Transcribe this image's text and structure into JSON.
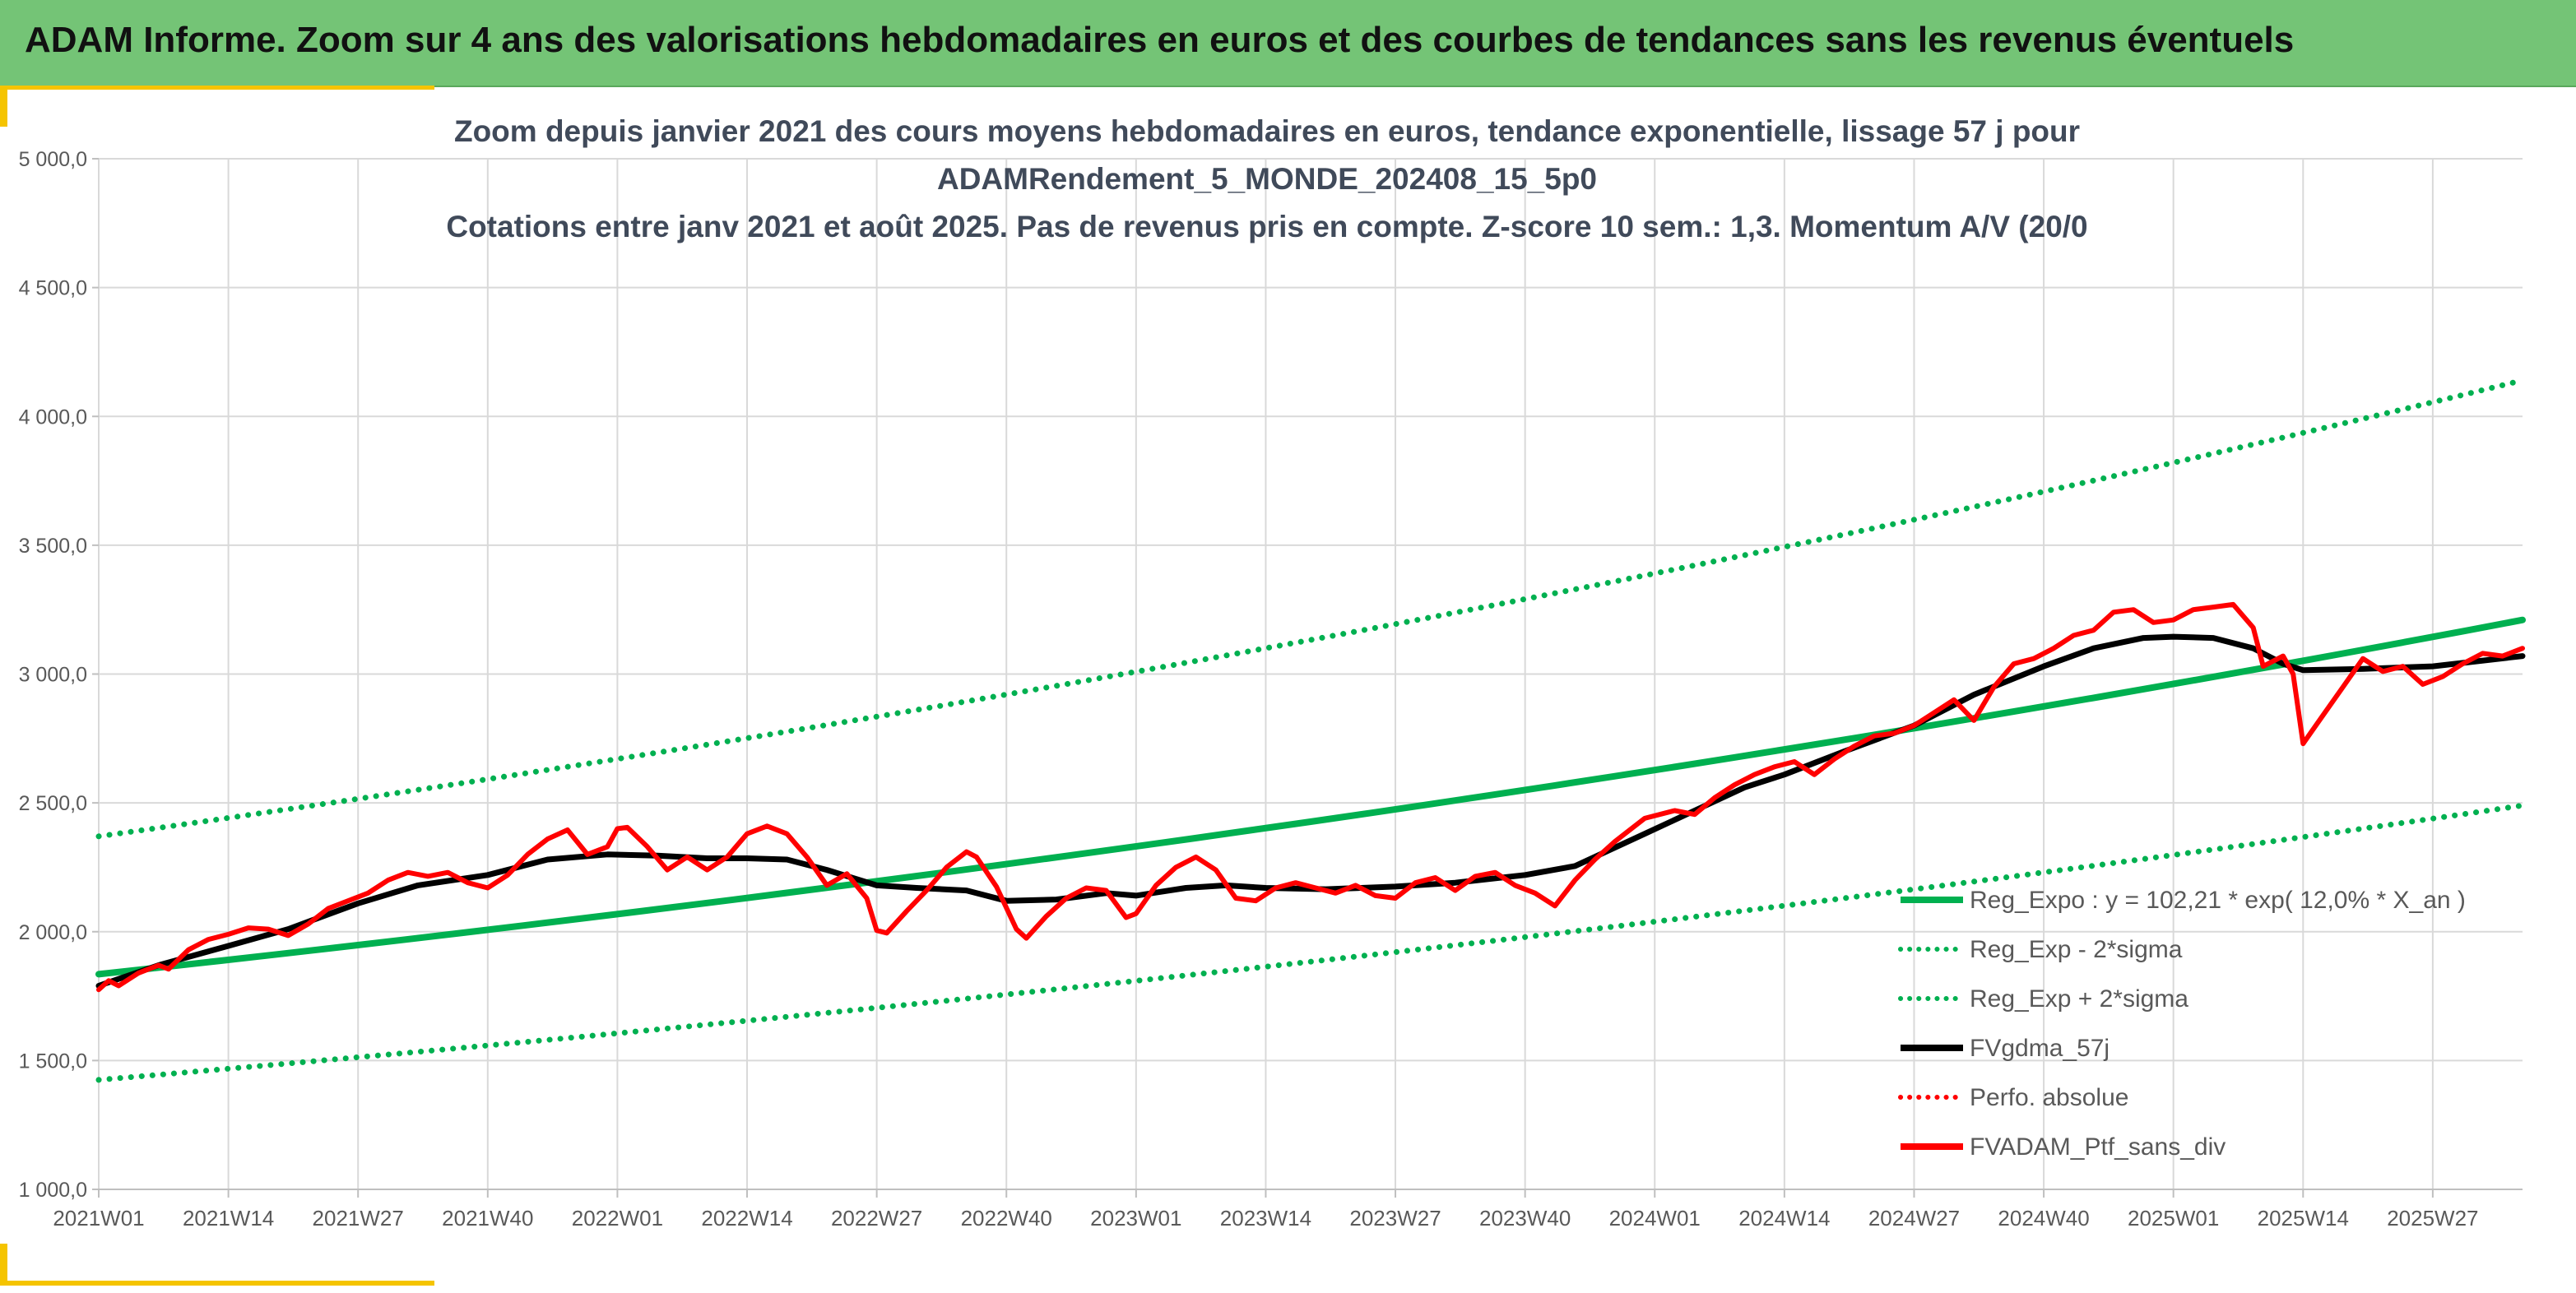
{
  "header": {
    "title": "ADAM Informe. Zoom sur 4 ans des valorisations hebdomadaires en euros et des courbes de tendances sans les revenus éventuels"
  },
  "colors": {
    "header_bg": "#74c476",
    "accent": "#f5c400",
    "trend": "#00b050",
    "band": "#00b050",
    "smoothed": "#000000",
    "portfolio": "#ff0000",
    "absolute_perf": "#ff0000"
  },
  "chart_data": {
    "type": "line",
    "title_lines": [
      "Zoom depuis janvier 2021 des cours moyens hebdomadaires en euros, tendance exponentielle, lissage 57 j pour",
      "ADAMRendement_5_MONDE_202408_15_5p0",
      "Cotations entre janv 2021 et août 2025. Pas de revenus pris en compte. Z-score 10 sem.: 1,3. Momentum A/V (20/0"
    ],
    "xlabel": "",
    "ylabel": "",
    "ylim": [
      1000,
      5000
    ],
    "yticks": [
      1000,
      1500,
      2000,
      2500,
      3000,
      3500,
      4000,
      4500,
      5000
    ],
    "ytick_labels": [
      "1 000,0",
      "1 500,0",
      "2 000,0",
      "2 500,0",
      "3 000,0",
      "3 500,0",
      "4 000,0",
      "4 500,0",
      "5 000,0"
    ],
    "x_start": "2021W01",
    "x_end": "2025W36",
    "xticks": [
      "2021W01",
      "2021W14",
      "2021W27",
      "2021W40",
      "2022W01",
      "2022W14",
      "2022W27",
      "2022W40",
      "2023W01",
      "2023W14",
      "2023W27",
      "2023W40",
      "2024W01",
      "2024W14",
      "2024W27",
      "2024W40",
      "2025W01",
      "2025W14",
      "2025W27"
    ],
    "grid": "vertical and horizontal",
    "legend_position": "bottom-right",
    "legend": [
      {
        "label": "Reg_Expo : y = 102,21 * exp( 12,0% *  X_an )",
        "series": "trend",
        "style": "solid",
        "color": "#00b050"
      },
      {
        "label": "Reg_Exp - 2*sigma",
        "series": "lower_band",
        "style": "dotted",
        "color": "#00b050"
      },
      {
        "label": "Reg_Exp + 2*sigma",
        "series": "upper_band",
        "style": "dotted",
        "color": "#00b050"
      },
      {
        "label": "FVgdma_57j",
        "series": "smoothed",
        "style": "solid",
        "color": "#000000"
      },
      {
        "label": "Perfo. absolue",
        "series": "absolute_perf",
        "style": "dotted",
        "color": "#ff0000"
      },
      {
        "label": "FVADAM_Ptf_sans_div",
        "series": "portfolio",
        "style": "solid",
        "color": "#ff0000"
      }
    ],
    "series": [
      {
        "name": "Reg_Expo : y = 102,21 * exp( 12,0% *  X_an )",
        "key": "trend",
        "points": [
          [
            "2021W01",
            1835
          ],
          [
            "2025W36",
            3210
          ]
        ]
      },
      {
        "name": "Reg_Exp - 2*sigma",
        "key": "lower_band",
        "points": [
          [
            "2021W01",
            1425
          ],
          [
            "2025W36",
            2490
          ]
        ]
      },
      {
        "name": "Reg_Exp + 2*sigma",
        "key": "upper_band",
        "points": [
          [
            "2021W01",
            2370
          ],
          [
            "2025W36",
            4140
          ]
        ]
      },
      {
        "name": "FVgdma_57j",
        "key": "smoothed",
        "points": [
          [
            "2021W01",
            1790
          ],
          [
            "2021W07",
            1870
          ],
          [
            "2021W14",
            1945
          ],
          [
            "2021W20",
            2010
          ],
          [
            "2021W27",
            2110
          ],
          [
            "2021W33",
            2180
          ],
          [
            "2021W40",
            2220
          ],
          [
            "2021W46",
            2280
          ],
          [
            "2021W52",
            2300
          ],
          [
            "2022W05",
            2295
          ],
          [
            "2022W10",
            2285
          ],
          [
            "2022W14",
            2285
          ],
          [
            "2022W18",
            2280
          ],
          [
            "2022W22",
            2240
          ],
          [
            "2022W27",
            2180
          ],
          [
            "2022W31",
            2170
          ],
          [
            "2022W36",
            2160
          ],
          [
            "2022W40",
            2120
          ],
          [
            "2022W45",
            2125
          ],
          [
            "2022W50",
            2150
          ],
          [
            "2023W01",
            2140
          ],
          [
            "2023W06",
            2170
          ],
          [
            "2023W10",
            2180
          ],
          [
            "2023W14",
            2170
          ],
          [
            "2023W20",
            2165
          ],
          [
            "2023W27",
            2175
          ],
          [
            "2023W33",
            2190
          ],
          [
            "2023W40",
            2220
          ],
          [
            "2023W45",
            2255
          ],
          [
            "2023W52",
            2380
          ],
          [
            "2024W05",
            2470
          ],
          [
            "2024W10",
            2560
          ],
          [
            "2024W14",
            2610
          ],
          [
            "2024W20",
            2700
          ],
          [
            "2024W27",
            2800
          ],
          [
            "2024W33",
            2920
          ],
          [
            "2024W40",
            3030
          ],
          [
            "2024W45",
            3100
          ],
          [
            "2024W50",
            3140
          ],
          [
            "2025W01",
            3145
          ],
          [
            "2025W05",
            3140
          ],
          [
            "2025W09",
            3100
          ],
          [
            "2025W12",
            3040
          ],
          [
            "2025W14",
            3015
          ],
          [
            "2025W20",
            3020
          ],
          [
            "2025W27",
            3030
          ],
          [
            "2025W36",
            3070
          ]
        ]
      },
      {
        "name": "FVADAM_Ptf_sans_div",
        "key": "portfolio",
        "points": [
          [
            "2021W01",
            1775
          ],
          [
            "2021W02",
            1810
          ],
          [
            "2021W03",
            1790
          ],
          [
            "2021W05",
            1840
          ],
          [
            "2021W07",
            1870
          ],
          [
            "2021W08",
            1855
          ],
          [
            "2021W10",
            1930
          ],
          [
            "2021W12",
            1970
          ],
          [
            "2021W14",
            1990
          ],
          [
            "2021W16",
            2015
          ],
          [
            "2021W18",
            2010
          ],
          [
            "2021W20",
            1985
          ],
          [
            "2021W22",
            2030
          ],
          [
            "2021W24",
            2090
          ],
          [
            "2021W26",
            2120
          ],
          [
            "2021W28",
            2150
          ],
          [
            "2021W30",
            2200
          ],
          [
            "2021W32",
            2230
          ],
          [
            "2021W34",
            2215
          ],
          [
            "2021W36",
            2230
          ],
          [
            "2021W38",
            2190
          ],
          [
            "2021W40",
            2170
          ],
          [
            "2021W42",
            2220
          ],
          [
            "2021W44",
            2300
          ],
          [
            "2021W46",
            2360
          ],
          [
            "2021W48",
            2395
          ],
          [
            "2021W50",
            2300
          ],
          [
            "2021W52",
            2330
          ],
          [
            "2022W01",
            2400
          ],
          [
            "2022W02",
            2405
          ],
          [
            "2022W04",
            2330
          ],
          [
            "2022W06",
            2240
          ],
          [
            "2022W08",
            2290
          ],
          [
            "2022W10",
            2240
          ],
          [
            "2022W12",
            2290
          ],
          [
            "2022W14",
            2380
          ],
          [
            "2022W16",
            2410
          ],
          [
            "2022W18",
            2380
          ],
          [
            "2022W20",
            2290
          ],
          [
            "2022W22",
            2180
          ],
          [
            "2022W24",
            2225
          ],
          [
            "2022W26",
            2130
          ],
          [
            "2022W27",
            2005
          ],
          [
            "2022W28",
            1995
          ],
          [
            "2022W30",
            2080
          ],
          [
            "2022W32",
            2160
          ],
          [
            "2022W34",
            2250
          ],
          [
            "2022W36",
            2310
          ],
          [
            "2022W37",
            2290
          ],
          [
            "2022W39",
            2175
          ],
          [
            "2022W41",
            2010
          ],
          [
            "2022W42",
            1975
          ],
          [
            "2022W44",
            2060
          ],
          [
            "2022W46",
            2130
          ],
          [
            "2022W48",
            2170
          ],
          [
            "2022W50",
            2160
          ],
          [
            "2022W52",
            2055
          ],
          [
            "2023W01",
            2070
          ],
          [
            "2023W03",
            2180
          ],
          [
            "2023W05",
            2250
          ],
          [
            "2023W07",
            2290
          ],
          [
            "2023W09",
            2240
          ],
          [
            "2023W11",
            2130
          ],
          [
            "2023W13",
            2120
          ],
          [
            "2023W15",
            2170
          ],
          [
            "2023W17",
            2190
          ],
          [
            "2023W19",
            2170
          ],
          [
            "2023W21",
            2150
          ],
          [
            "2023W23",
            2180
          ],
          [
            "2023W25",
            2140
          ],
          [
            "2023W27",
            2130
          ],
          [
            "2023W29",
            2190
          ],
          [
            "2023W31",
            2210
          ],
          [
            "2023W33",
            2160
          ],
          [
            "2023W35",
            2215
          ],
          [
            "2023W37",
            2230
          ],
          [
            "2023W39",
            2180
          ],
          [
            "2023W41",
            2150
          ],
          [
            "2023W43",
            2100
          ],
          [
            "2023W45",
            2200
          ],
          [
            "2023W47",
            2280
          ],
          [
            "2023W49",
            2350
          ],
          [
            "2023W52",
            2440
          ],
          [
            "2024W03",
            2470
          ],
          [
            "2024W05",
            2455
          ],
          [
            "2024W07",
            2520
          ],
          [
            "2024W09",
            2570
          ],
          [
            "2024W11",
            2610
          ],
          [
            "2024W13",
            2640
          ],
          [
            "2024W15",
            2660
          ],
          [
            "2024W17",
            2610
          ],
          [
            "2024W19",
            2670
          ],
          [
            "2024W21",
            2720
          ],
          [
            "2024W23",
            2760
          ],
          [
            "2024W25",
            2770
          ],
          [
            "2024W27",
            2800
          ],
          [
            "2024W29",
            2850
          ],
          [
            "2024W31",
            2900
          ],
          [
            "2024W33",
            2820
          ],
          [
            "2024W35",
            2950
          ],
          [
            "2024W37",
            3040
          ],
          [
            "2024W39",
            3060
          ],
          [
            "2024W41",
            3100
          ],
          [
            "2024W43",
            3150
          ],
          [
            "2024W45",
            3170
          ],
          [
            "2024W47",
            3240
          ],
          [
            "2024W49",
            3250
          ],
          [
            "2024W51",
            3200
          ],
          [
            "2025W01",
            3210
          ],
          [
            "2025W03",
            3250
          ],
          [
            "2025W05",
            3260
          ],
          [
            "2025W07",
            3270
          ],
          [
            "2025W09",
            3180
          ],
          [
            "2025W10",
            3030
          ],
          [
            "2025W12",
            3070
          ],
          [
            "2025W13",
            3000
          ],
          [
            "2025W14",
            2730
          ],
          [
            "2025W16",
            2840
          ],
          [
            "2025W18",
            2950
          ],
          [
            "2025W20",
            3060
          ],
          [
            "2025W22",
            3010
          ],
          [
            "2025W24",
            3030
          ],
          [
            "2025W26",
            2960
          ],
          [
            "2025W28",
            2990
          ],
          [
            "2025W30",
            3040
          ],
          [
            "2025W32",
            3080
          ],
          [
            "2025W34",
            3070
          ],
          [
            "2025W36",
            3100
          ]
        ]
      }
    ]
  }
}
